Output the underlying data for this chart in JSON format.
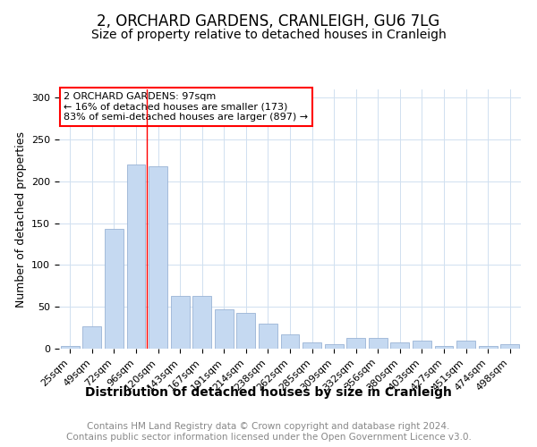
{
  "title": "2, ORCHARD GARDENS, CRANLEIGH, GU6 7LG",
  "subtitle": "Size of property relative to detached houses in Cranleigh",
  "xlabel": "Distribution of detached houses by size in Cranleigh",
  "ylabel": "Number of detached properties",
  "categories": [
    "25sqm",
    "49sqm",
    "72sqm",
    "96sqm",
    "120sqm",
    "143sqm",
    "167sqm",
    "191sqm",
    "214sqm",
    "238sqm",
    "262sqm",
    "285sqm",
    "309sqm",
    "332sqm",
    "356sqm",
    "380sqm",
    "403sqm",
    "427sqm",
    "451sqm",
    "474sqm",
    "498sqm"
  ],
  "values": [
    3,
    27,
    143,
    220,
    218,
    63,
    63,
    47,
    43,
    30,
    17,
    8,
    5,
    13,
    13,
    7,
    10,
    3,
    10,
    3,
    5
  ],
  "bar_color": "#c5d9f1",
  "bar_edge_color": "#9ab3d5",
  "annotation_text": "2 ORCHARD GARDENS: 97sqm\n← 16% of detached houses are smaller (173)\n83% of semi-detached houses are larger (897) →",
  "annotation_box_color": "white",
  "annotation_box_edge_color": "red",
  "property_line_x": 3.5,
  "property_line_color": "red",
  "ylim": [
    0,
    310
  ],
  "yticks": [
    0,
    50,
    100,
    150,
    200,
    250,
    300
  ],
  "footer": "Contains HM Land Registry data © Crown copyright and database right 2024.\nContains public sector information licensed under the Open Government Licence v3.0.",
  "title_fontsize": 12,
  "subtitle_fontsize": 10,
  "xlabel_fontsize": 10,
  "ylabel_fontsize": 9,
  "tick_fontsize": 8,
  "footer_fontsize": 7.5,
  "footer_color": "#888888",
  "grid_color": "#d0e0f0"
}
